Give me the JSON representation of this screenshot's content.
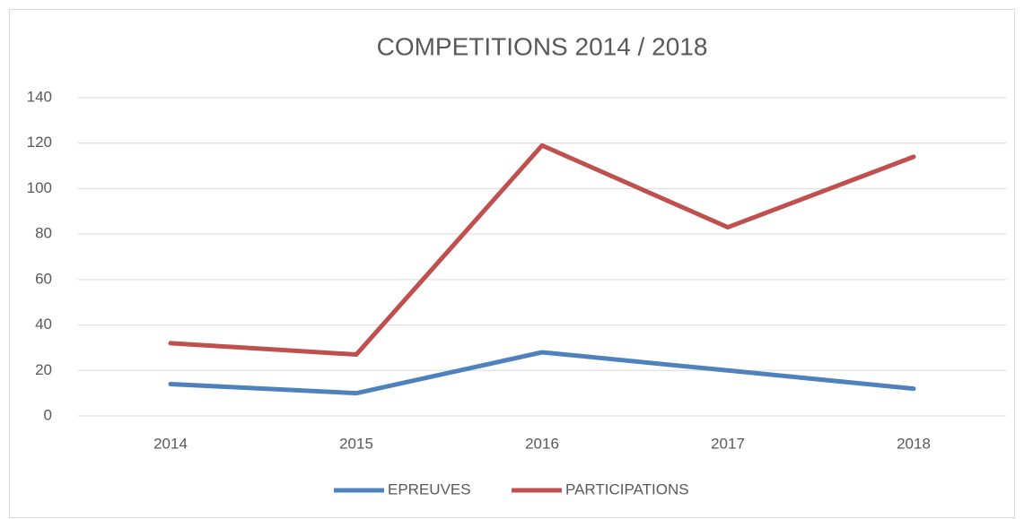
{
  "chart_data": {
    "type": "line",
    "title": "COMPETITIONS 2014 / 2018",
    "categories": [
      "2014",
      "2015",
      "2016",
      "2017",
      "2018"
    ],
    "series": [
      {
        "name": "EPREUVES",
        "color": "#4f81bd",
        "values": [
          14,
          10,
          28,
          20,
          12
        ]
      },
      {
        "name": "PARTICIPATIONS",
        "color": "#c0504d",
        "values": [
          32,
          27,
          119,
          83,
          114
        ]
      }
    ],
    "ylim": [
      0,
      140
    ],
    "yticks": [
      0,
      20,
      40,
      60,
      80,
      100,
      120,
      140
    ],
    "grid": true,
    "legend": "bottom"
  }
}
